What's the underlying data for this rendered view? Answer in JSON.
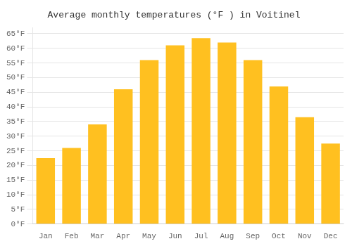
{
  "chart_data": {
    "type": "bar",
    "title": "Average monthly temperatures (°F ) in Voitinel",
    "categories": [
      "Jan",
      "Feb",
      "Mar",
      "Apr",
      "May",
      "Jun",
      "Jul",
      "Aug",
      "Sep",
      "Oct",
      "Nov",
      "Dec"
    ],
    "values": [
      22.5,
      26,
      34,
      46,
      56,
      61,
      63.5,
      62,
      56,
      47,
      36.5,
      27.5
    ],
    "color": "#FFC020",
    "ylim": [
      0,
      67
    ],
    "yticks": [
      {
        "value": 0,
        "label": "0°F"
      },
      {
        "value": 5,
        "label": "5°F"
      },
      {
        "value": 10,
        "label": "10°F"
      },
      {
        "value": 15,
        "label": "15°F"
      },
      {
        "value": 20,
        "label": "20°F"
      },
      {
        "value": 25,
        "label": "25°F"
      },
      {
        "value": 30,
        "label": "30°F"
      },
      {
        "value": 35,
        "label": "35°F"
      },
      {
        "value": 40,
        "label": "40°F"
      },
      {
        "value": 45,
        "label": "45°F"
      },
      {
        "value": 50,
        "label": "50°F"
      },
      {
        "value": 55,
        "label": "55°F"
      },
      {
        "value": 60,
        "label": "60°F"
      },
      {
        "value": 65,
        "label": "65°F"
      }
    ],
    "grid": true
  }
}
